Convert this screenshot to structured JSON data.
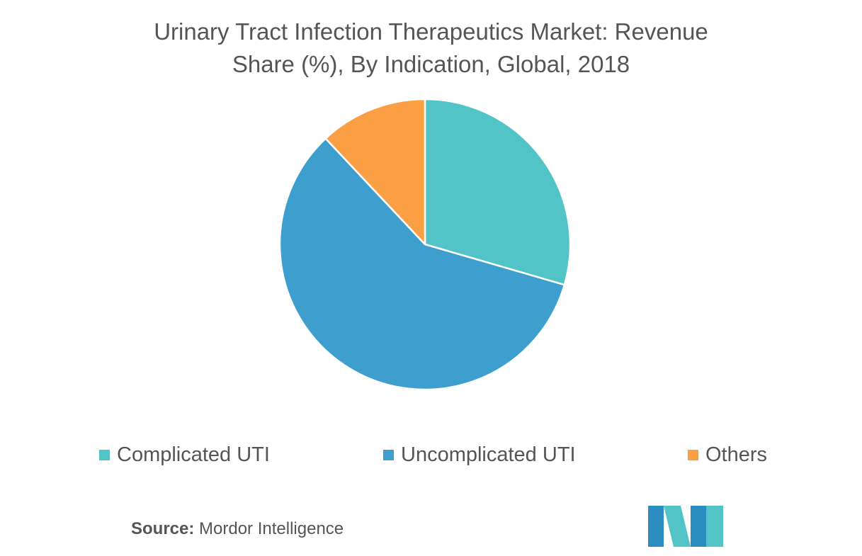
{
  "chart_data": {
    "type": "pie",
    "title": "Urinary Tract Infection Therapeutics Market: Revenue Share (%), By Indication, Global, 2018",
    "categories": [
      "Complicated UTI",
      "Uncomplicated UTI",
      "Others"
    ],
    "values": [
      29.5,
      58.5,
      12.0
    ],
    "colors": [
      "#52C4C7",
      "#3E9FCF",
      "#FB9F45"
    ],
    "legend_position": "bottom"
  },
  "legend": {
    "items": [
      {
        "label": "Complicated UTI",
        "color": "#52C4C7"
      },
      {
        "label": "Uncomplicated UTI",
        "color": "#3E9FCF"
      },
      {
        "label": "Others",
        "color": "#FB9F45"
      }
    ]
  },
  "source": {
    "key": "Source:",
    "value": "Mordor Intelligence"
  },
  "logo": {
    "icon": "mordor-intelligence-logo",
    "colors": [
      "#2B8DBF",
      "#52C4C7"
    ]
  }
}
